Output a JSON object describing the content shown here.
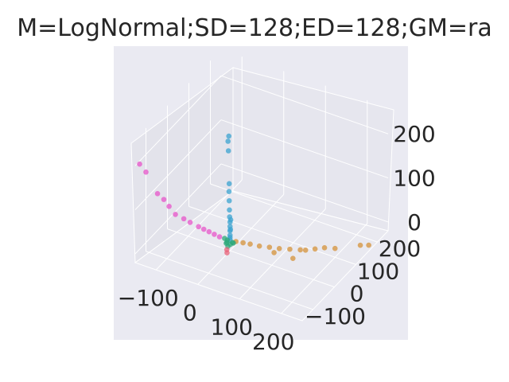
{
  "chart_data": {
    "type": "scatter3d",
    "title": "M=LogNormal;SD=128;ED=128;GM=ra",
    "xlabel": "",
    "ylabel": "",
    "zlabel": "",
    "x_ticks": [
      "−100",
      "0",
      "100",
      "200"
    ],
    "y_ticks": [
      "−100",
      "0",
      "100",
      "200"
    ],
    "z_ticks": [
      "0",
      "100",
      "200"
    ],
    "xlim": [
      -150,
      250
    ],
    "ylim": [
      -150,
      250
    ],
    "zlim": [
      -20,
      260
    ],
    "grid": true,
    "colors": {
      "pane": "#eaeaf2",
      "pane_side": "#e3e3eb",
      "grid": "#ffffff",
      "series": [
        "#3ba3d0",
        "#d4923a",
        "#e754c9",
        "#2ca87a",
        "#e8617a"
      ]
    },
    "series": [
      {
        "color": "#3ba3d0",
        "points": [
          [
            0,
            0,
            5
          ],
          [
            0,
            0,
            15
          ],
          [
            0,
            0,
            25
          ],
          [
            0,
            0,
            35
          ],
          [
            0,
            0,
            45
          ],
          [
            -2,
            2,
            55
          ],
          [
            -3,
            3,
            70
          ],
          [
            -4,
            4,
            90
          ],
          [
            -5,
            5,
            110
          ],
          [
            -3,
            2,
            130
          ],
          [
            -8,
            8,
            200
          ],
          [
            -10,
            10,
            220
          ],
          [
            -6,
            6,
            235
          ],
          [
            0,
            0,
            10
          ],
          [
            2,
            -2,
            30
          ],
          [
            1,
            1,
            50
          ]
        ]
      },
      {
        "color": "#d4923a",
        "points": [
          [
            10,
            8,
            0
          ],
          [
            25,
            12,
            0
          ],
          [
            40,
            16,
            0
          ],
          [
            60,
            20,
            0
          ],
          [
            80,
            28,
            0
          ],
          [
            100,
            35,
            0
          ],
          [
            120,
            45,
            0
          ],
          [
            140,
            55,
            0
          ],
          [
            150,
            60,
            0
          ],
          [
            165,
            75,
            0
          ],
          [
            180,
            90,
            0
          ],
          [
            200,
            100,
            0
          ],
          [
            240,
            140,
            0
          ],
          [
            255,
            150,
            0
          ],
          [
            90,
            30,
            -10
          ],
          [
            130,
            40,
            -15
          ]
        ]
      },
      {
        "color": "#e754c9",
        "points": [
          [
            -20,
            -10,
            10
          ],
          [
            -40,
            -20,
            20
          ],
          [
            -60,
            -30,
            30
          ],
          [
            -75,
            -40,
            40
          ],
          [
            -85,
            -50,
            50
          ],
          [
            -100,
            -60,
            60
          ],
          [
            -110,
            -70,
            80
          ],
          [
            -120,
            -75,
            95
          ],
          [
            -130,
            -85,
            110
          ],
          [
            -150,
            -100,
            160
          ],
          [
            -160,
            -110,
            180
          ],
          [
            -50,
            -25,
            25
          ],
          [
            -30,
            -15,
            15
          ]
        ]
      },
      {
        "color": "#2ca87a",
        "points": [
          [
            -5,
            -5,
            0
          ],
          [
            5,
            -8,
            0
          ],
          [
            -8,
            3,
            0
          ],
          [
            0,
            -10,
            -5
          ],
          [
            8,
            0,
            0
          ],
          [
            -12,
            -2,
            5
          ],
          [
            3,
            5,
            -3
          ],
          [
            -3,
            -12,
            2
          ]
        ]
      },
      {
        "color": "#e8617a",
        "points": [
          [
            0,
            -15,
            -10
          ],
          [
            2,
            -18,
            -15
          ]
        ]
      }
    ]
  }
}
